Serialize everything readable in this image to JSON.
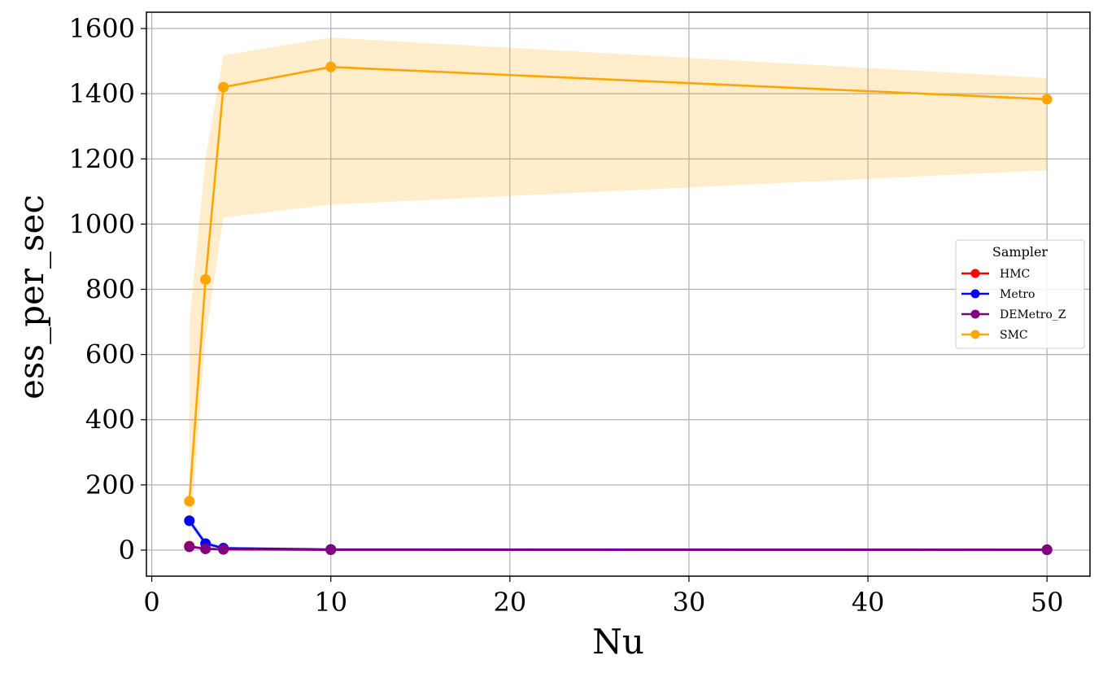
{
  "chart_data": {
    "type": "line",
    "xlabel": "Nu",
    "ylabel": "ess_per_sec",
    "xlim": [
      -0.3,
      52.4
    ],
    "ylim": [
      -80,
      1650
    ],
    "x_ticks": [
      0,
      10,
      20,
      30,
      40,
      50
    ],
    "y_ticks": [
      0,
      200,
      400,
      600,
      800,
      1000,
      1200,
      1400,
      1600
    ],
    "x_tick_labels": [
      "0",
      "10",
      "20",
      "30",
      "40",
      "50"
    ],
    "y_tick_labels": [
      "0",
      "200",
      "400",
      "600",
      "800",
      "1000",
      "1200",
      "1400",
      "1600"
    ],
    "grid": true,
    "legend": {
      "title": "Sampler",
      "placement": "center-right"
    },
    "x": [
      2.1,
      3,
      4,
      10,
      50
    ],
    "series": [
      {
        "name": "HMC",
        "color": "#ff0000",
        "values": [
          12,
          4,
          3,
          1,
          1
        ],
        "band_lower": [
          8,
          2,
          2,
          0.5,
          0.5
        ],
        "band_upper": [
          16,
          6,
          4,
          1.5,
          1.5
        ]
      },
      {
        "name": "Metro",
        "color": "#0000ff",
        "values": [
          90,
          20,
          6,
          2,
          1
        ],
        "band_lower": [
          80,
          12,
          4,
          1,
          0.5
        ],
        "band_upper": [
          100,
          30,
          9,
          3,
          1.5
        ]
      },
      {
        "name": "DEMetro_Z",
        "color": "#800080",
        "values": [
          10,
          4,
          2,
          1,
          1
        ],
        "band_lower": [
          6,
          2,
          1,
          0.5,
          0.5
        ],
        "band_upper": [
          14,
          6,
          4,
          1.5,
          1.5
        ]
      },
      {
        "name": "SMC",
        "color": "#ffa500",
        "values": [
          150,
          830,
          1420,
          1482,
          1383
        ],
        "band_lower": [
          5,
          650,
          1020,
          1060,
          1165
        ],
        "band_upper": [
          700,
          1200,
          1518,
          1572,
          1448
        ]
      }
    ]
  }
}
